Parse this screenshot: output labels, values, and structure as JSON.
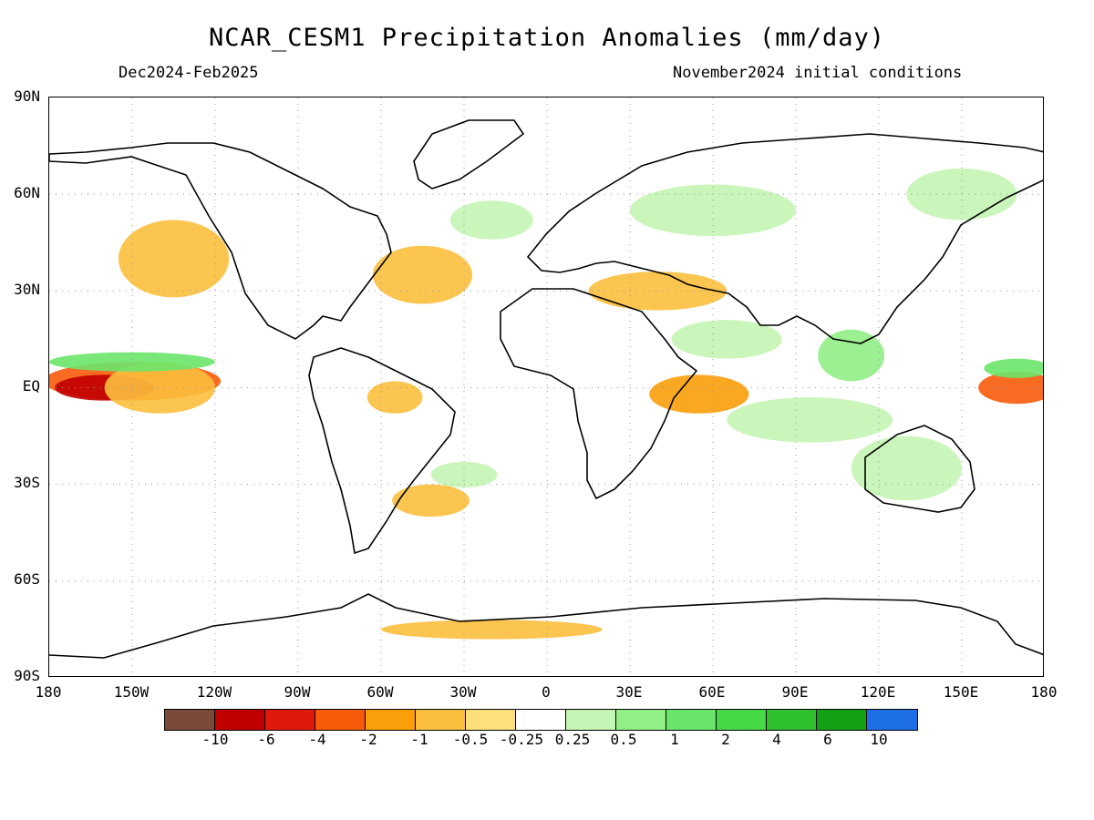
{
  "title": "NCAR_CESM1 Precipitation Anomalies (mm/day)",
  "subtitle_left": "Dec2024-Feb2025",
  "subtitle_right": "November2024 initial conditions",
  "lat_labels": [
    "90N",
    "60N",
    "30N",
    "EQ",
    "30S",
    "60S",
    "90S"
  ],
  "lon_labels": [
    "180",
    "150W",
    "120W",
    "90W",
    "60W",
    "30W",
    "0",
    "30E",
    "60E",
    "90E",
    "120E",
    "150E",
    "180"
  ],
  "colorbar": {
    "colors": [
      "#7a4a3a",
      "#c00000",
      "#e01a0a",
      "#f85a0a",
      "#fa9e0a",
      "#fbbf3d",
      "#fde07a",
      "#ffffff",
      "#c4f5b4",
      "#92ee86",
      "#6ae56a",
      "#46d846",
      "#2fc02f",
      "#14a014",
      "#1e6ee6"
    ],
    "ticks": [
      "-10",
      "-6",
      "-4",
      "-2",
      "-1",
      "-0.5",
      "-0.25",
      "0.25",
      "0.5",
      "1",
      "2",
      "4",
      "6",
      "10"
    ]
  },
  "anomaly_regions": [
    {
      "lon": -150,
      "lat": 2,
      "rlon": 32,
      "rlat": 6,
      "level": -3
    },
    {
      "lon": -160,
      "lat": 0,
      "rlon": 18,
      "rlat": 4,
      "level": -5
    },
    {
      "lon": -140,
      "lat": 0,
      "rlon": 20,
      "rlat": 8,
      "level": -1
    },
    {
      "lon": -150,
      "lat": 8,
      "rlon": 30,
      "rlat": 3,
      "level": 3
    },
    {
      "lon": -135,
      "lat": 40,
      "rlon": 20,
      "rlat": 12,
      "level": -1
    },
    {
      "lon": -45,
      "lat": 35,
      "rlon": 18,
      "rlat": 9,
      "level": -1
    },
    {
      "lon": -42,
      "lat": -35,
      "rlon": 14,
      "rlat": 5,
      "level": -1
    },
    {
      "lon": -30,
      "lat": -27,
      "rlon": 12,
      "rlat": 4,
      "level": 1
    },
    {
      "lon": -55,
      "lat": -3,
      "rlon": 10,
      "rlat": 5,
      "level": -1
    },
    {
      "lon": 55,
      "lat": -2,
      "rlon": 18,
      "rlat": 6,
      "level": -2
    },
    {
      "lon": 65,
      "lat": 15,
      "rlon": 20,
      "rlat": 6,
      "level": 1
    },
    {
      "lon": 95,
      "lat": -10,
      "rlon": 30,
      "rlat": 7,
      "level": 1
    },
    {
      "lon": 110,
      "lat": 10,
      "rlon": 12,
      "rlat": 8,
      "level": 2
    },
    {
      "lon": 130,
      "lat": -25,
      "rlon": 20,
      "rlat": 10,
      "level": 1
    },
    {
      "lon": 170,
      "lat": 0,
      "rlon": 14,
      "rlat": 5,
      "level": -3
    },
    {
      "lon": 170,
      "lat": 6,
      "rlon": 12,
      "rlat": 3,
      "level": 3
    },
    {
      "lon": 40,
      "lat": 30,
      "rlon": 25,
      "rlat": 6,
      "level": -1
    },
    {
      "lon": -20,
      "lat": 52,
      "rlon": 15,
      "rlat": 6,
      "level": 1
    },
    {
      "lon": 60,
      "lat": 55,
      "rlon": 30,
      "rlat": 8,
      "level": 1
    },
    {
      "lon": 150,
      "lat": 60,
      "rlon": 20,
      "rlat": 8,
      "level": 1
    },
    {
      "lon": -20,
      "lat": -75,
      "rlon": 40,
      "rlat": 3,
      "level": -1
    }
  ]
}
